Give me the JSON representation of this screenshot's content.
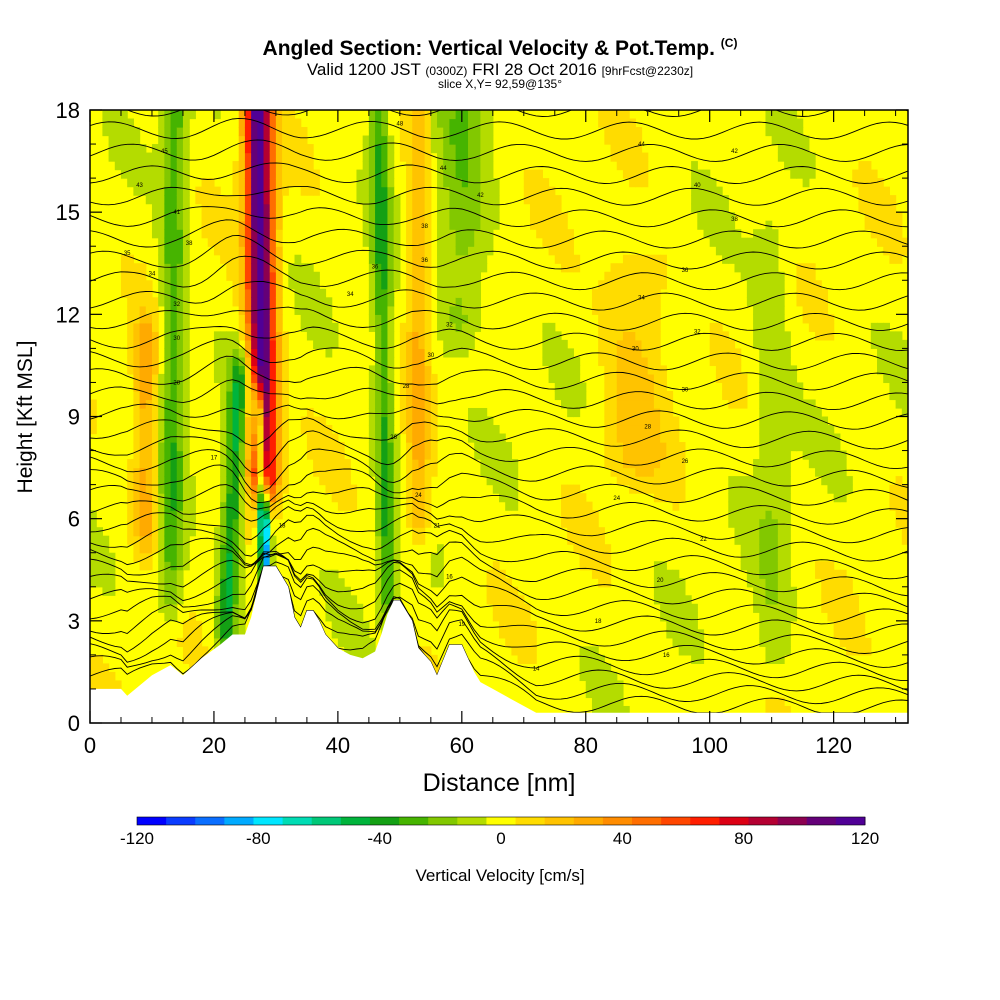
{
  "header": {
    "title": "Angled Section: Vertical Velocity & Pot.Temp.",
    "title_unit": "(C)",
    "subtitle_valid": "Valid 1200 JST",
    "subtitle_zulu": "(0300Z)",
    "subtitle_date": "FRI 28 Oct 2016",
    "subtitle_fcst": "[9hrFcst@2230z]",
    "slice": "slice X,Y= 92,59@135°"
  },
  "chart_data": {
    "type": "heatmap",
    "title": "Angled Section: Vertical Velocity & Pot.Temp.",
    "xlabel": "Distance [nm]",
    "ylabel": "Height [Kft MSL]",
    "xlim": [
      0,
      132
    ],
    "ylim": [
      0,
      18
    ],
    "x_ticks": [
      0,
      20,
      40,
      60,
      80,
      100,
      120
    ],
    "y_ticks": [
      0,
      3,
      6,
      9,
      12,
      15,
      18
    ],
    "colorbar": {
      "label": "Vertical Velocity [cm/s]",
      "range": [
        -120,
        120
      ],
      "tick_labels": [
        "-120",
        "-80",
        "-40",
        "0",
        "40",
        "80",
        "120"
      ],
      "colors": [
        "#0000ff",
        "#0a3cff",
        "#0a6eff",
        "#00aaff",
        "#00e6ff",
        "#00dcb4",
        "#00c878",
        "#00b43c",
        "#14a014",
        "#46b400",
        "#82c800",
        "#b4dc00",
        "#ffff00",
        "#ffdc00",
        "#ffc300",
        "#ffaa00",
        "#ff8c00",
        "#ff6e00",
        "#ff4600",
        "#ff1e00",
        "#dc0014",
        "#b40032",
        "#8c0050",
        "#640078",
        "#500096"
      ]
    },
    "terrain_profile": {
      "x": [
        0,
        5,
        6,
        8,
        10,
        13,
        15,
        18,
        21,
        23,
        25,
        26,
        27,
        28,
        30,
        32,
        33,
        34,
        35,
        36,
        37,
        38,
        40,
        42,
        44,
        46,
        47,
        48,
        49,
        50,
        52,
        53,
        55,
        56,
        58,
        60,
        62,
        63,
        65,
        67,
        70,
        72,
        75,
        80,
        90,
        100,
        110,
        120,
        132
      ],
      "z": [
        1.0,
        1.0,
        0.8,
        1.1,
        1.4,
        1.7,
        1.4,
        1.9,
        2.3,
        2.6,
        2.6,
        3.1,
        3.9,
        4.6,
        4.6,
        4.0,
        3.1,
        2.8,
        3.3,
        3.3,
        3.0,
        2.6,
        2.2,
        2.0,
        1.9,
        2.1,
        2.6,
        3.2,
        3.6,
        3.6,
        3.0,
        2.2,
        1.8,
        1.4,
        2.3,
        2.3,
        1.5,
        1.2,
        1.0,
        0.8,
        0.5,
        0.3,
        0.3,
        0.3,
        0.3,
        0.3,
        0.3,
        0.3,
        0.3
      ]
    },
    "velocity_features": [
      {
        "x": 28,
        "z_bottom": 7.5,
        "z_top": 18,
        "w": 120,
        "halfwidth": 2.2,
        "tilt": -0.08
      },
      {
        "x": 22,
        "z_bottom": 3,
        "z_top": 10,
        "w": -45,
        "halfwidth": 1.6,
        "tilt": 0.3
      },
      {
        "x": 28.5,
        "z_bottom": 4,
        "z_top": 9,
        "w": -100,
        "halfwidth": 0.9,
        "tilt": -0.25
      },
      {
        "x": 13,
        "z_bottom": 4,
        "z_top": 18,
        "w": -30,
        "halfwidth": 2.0,
        "tilt": 0.05
      },
      {
        "x": 9,
        "z_bottom": 6,
        "z_top": 11,
        "w": 30,
        "halfwidth": 2.0,
        "tilt": 0.0
      },
      {
        "x": 48,
        "z_bottom": 4,
        "z_top": 18,
        "w": -35,
        "halfwidth": 1.5,
        "tilt": -0.1
      },
      {
        "x": 53,
        "z_bottom": 6,
        "z_top": 18,
        "w": 25,
        "halfwidth": 1.8,
        "tilt": 0.0
      },
      {
        "x": 60,
        "z_bottom": 12,
        "z_top": 18,
        "w": -20,
        "halfwidth": 4.0,
        "tilt": 0.0
      },
      {
        "x": 88,
        "z_bottom": 8,
        "z_top": 13,
        "w": 18,
        "halfwidth": 5.0,
        "tilt": 0.0
      },
      {
        "x": 110,
        "z_bottom": 2,
        "z_top": 14,
        "w": -12,
        "halfwidth": 3.0,
        "tilt": 0.0
      }
    ],
    "isentropes_count": 44,
    "isentrope_labels": [
      {
        "x": 20,
        "z": 7.8,
        "text": "17"
      },
      {
        "x": 31,
        "z": 5.8,
        "text": "18"
      },
      {
        "x": 58,
        "z": 4.3,
        "text": "16"
      },
      {
        "x": 56,
        "z": 5.8,
        "text": "21"
      },
      {
        "x": 60,
        "z": 2.9,
        "text": "19"
      },
      {
        "x": 72,
        "z": 1.6,
        "text": "14"
      },
      {
        "x": 82,
        "z": 3.0,
        "text": "18"
      },
      {
        "x": 93,
        "z": 2.0,
        "text": "16"
      },
      {
        "x": 92,
        "z": 4.2,
        "text": "20"
      },
      {
        "x": 99,
        "z": 5.4,
        "text": "22"
      },
      {
        "x": 85,
        "z": 6.6,
        "text": "24"
      },
      {
        "x": 96,
        "z": 7.7,
        "text": "26"
      },
      {
        "x": 90,
        "z": 8.7,
        "text": "28"
      },
      {
        "x": 96,
        "z": 9.8,
        "text": "30"
      },
      {
        "x": 98,
        "z": 11.5,
        "text": "32"
      },
      {
        "x": 89,
        "z": 12.5,
        "text": "34"
      },
      {
        "x": 96,
        "z": 13.3,
        "text": "36"
      },
      {
        "x": 104,
        "z": 14.8,
        "text": "38"
      },
      {
        "x": 98,
        "z": 15.8,
        "text": "40"
      },
      {
        "x": 104,
        "z": 16.8,
        "text": "42"
      },
      {
        "x": 89,
        "z": 17.0,
        "text": "44"
      },
      {
        "x": 90,
        "z": 18.0,
        "text": "46"
      },
      {
        "x": 50,
        "z": 17.6,
        "text": "48"
      },
      {
        "x": 12,
        "z": 16.8,
        "text": "45"
      },
      {
        "x": 8,
        "z": 15.8,
        "text": "43"
      },
      {
        "x": 14,
        "z": 15.0,
        "text": "41"
      },
      {
        "x": 16,
        "z": 14.1,
        "text": "38"
      },
      {
        "x": 6,
        "z": 13.8,
        "text": "35"
      },
      {
        "x": 10,
        "z": 13.2,
        "text": "34"
      },
      {
        "x": 14,
        "z": 12.3,
        "text": "32"
      },
      {
        "x": 14,
        "z": 11.3,
        "text": "30"
      },
      {
        "x": 14,
        "z": 10.0,
        "text": "28"
      },
      {
        "x": 42,
        "z": 12.6,
        "text": "34"
      },
      {
        "x": 46,
        "z": 13.4,
        "text": "36"
      },
      {
        "x": 54,
        "z": 14.6,
        "text": "38"
      },
      {
        "x": 54,
        "z": 13.6,
        "text": "36"
      },
      {
        "x": 58,
        "z": 11.7,
        "text": "32"
      },
      {
        "x": 55,
        "z": 10.8,
        "text": "30"
      },
      {
        "x": 51,
        "z": 9.9,
        "text": "28"
      },
      {
        "x": 49,
        "z": 8.4,
        "text": "26"
      },
      {
        "x": 53,
        "z": 6.7,
        "text": "24"
      },
      {
        "x": 63,
        "z": 15.5,
        "text": "42"
      },
      {
        "x": 57,
        "z": 16.3,
        "text": "44"
      },
      {
        "x": 88,
        "z": 11.0,
        "text": "30"
      }
    ]
  }
}
